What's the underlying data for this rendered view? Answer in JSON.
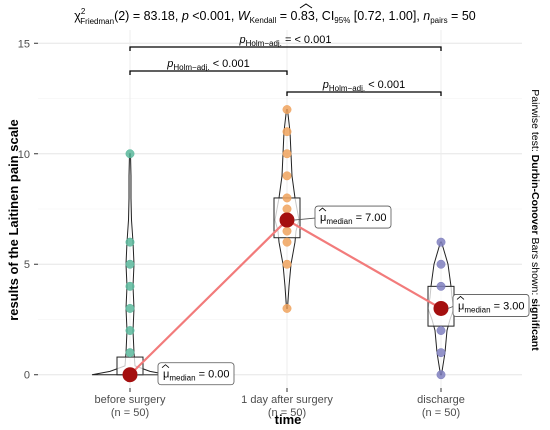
{
  "chart_data": {
    "type": "violin-box-scatter",
    "subtitle": {
      "chi_sym": "χ",
      "chi_sup": "2",
      "chi_sub": "Friedman",
      "df": "(2) = 83.18, ",
      "p_sym": "p",
      "p_val": " <0.001, ",
      "w_sym": "W",
      "w_sub": "Kendall",
      "w_val": " = 0.83, ",
      "ci_sym": "CI",
      "ci_sub": "95%",
      "ci_val": " [0.72, 1.00], ",
      "n_sym": "n",
      "n_sub": "pairs",
      "n_val": " = 50"
    },
    "ylabel": "results of the Laitinen pain scale",
    "xlabel": "time",
    "ylim": [
      -0.6,
      15.6
    ],
    "yticks": [
      0,
      5,
      10,
      15
    ],
    "grid": true,
    "categories": [
      {
        "name": "before surgery",
        "n_label": "(n = 50)",
        "color": "#5bb89c",
        "median": 0.0,
        "median_label": "0.00",
        "points": [
          0,
          1,
          2,
          3,
          4,
          5,
          6,
          10
        ],
        "violin_max": 10,
        "q1": 0,
        "q3": 0.8
      },
      {
        "name": "1 day after surgery",
        "n_label": "(n = 50)",
        "color": "#f0a35e",
        "median": 7.0,
        "median_label": "7.00",
        "points": [
          3,
          5,
          6,
          6.5,
          7,
          7.5,
          8,
          9,
          10,
          11,
          12
        ],
        "violin_min": 3,
        "violin_max": 12,
        "q1": 6.2,
        "q3": 8.0
      },
      {
        "name": "discharge",
        "n_label": "(n = 50)",
        "color": "#8080c0",
        "median": 3.0,
        "median_label": "3.00",
        "points": [
          0,
          1,
          2,
          3,
          4,
          5,
          6
        ],
        "violin_min": 0,
        "violin_max": 6,
        "q1": 2.2,
        "q3": 4.0
      }
    ],
    "median_label_prefix": "μ",
    "median_label_sub": "median",
    "median_label_eq": " = ",
    "median_line_color": "#f27b7b",
    "median_point_color": "#a40f0f",
    "significance": [
      {
        "from": 0,
        "to": 2,
        "level": 1,
        "p_sym": "p",
        "p_sub": "Holm−adj.",
        "text": " = < 0.001"
      },
      {
        "from": 0,
        "to": 1,
        "level": 2,
        "p_sym": "p",
        "p_sub": "Holm−adj.",
        "text": " < 0.001"
      },
      {
        "from": 1,
        "to": 2,
        "level": 3,
        "p_sym": "p",
        "p_sub": "Holm−adj.",
        "text": " < 0.001"
      }
    ],
    "side_note": {
      "part1": "Pairwise test: ",
      "part2": "Durbin-Conover",
      "part3": " Bars shown: ",
      "part4": "significant"
    }
  }
}
